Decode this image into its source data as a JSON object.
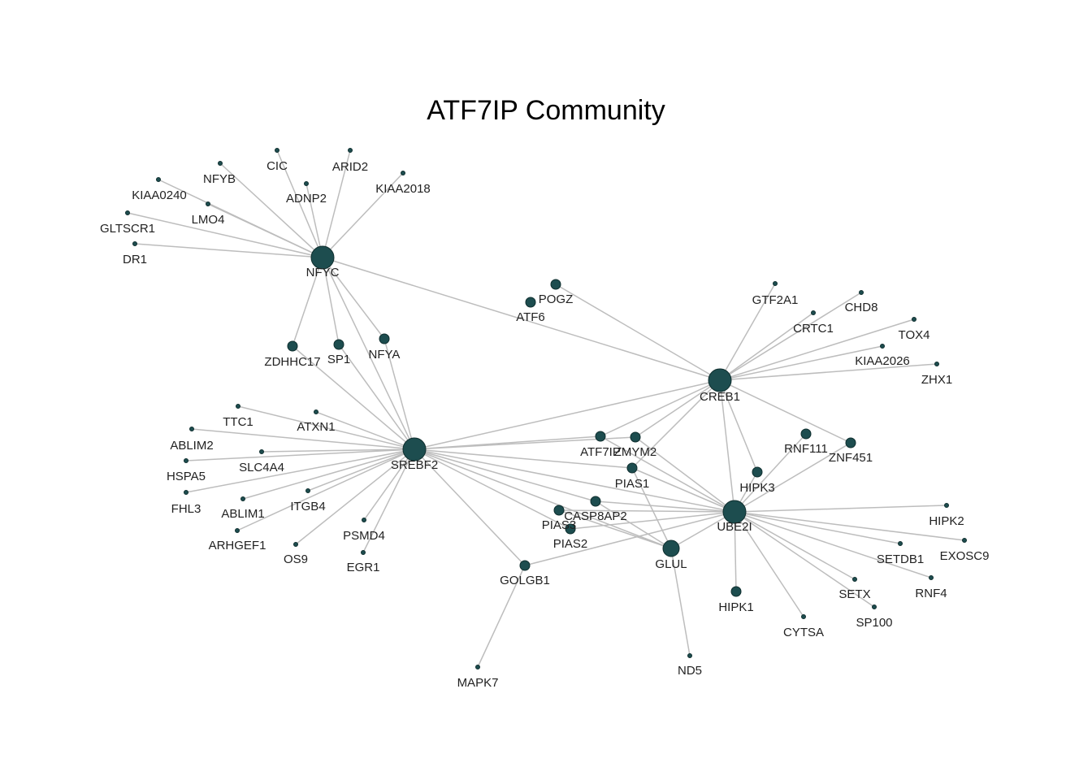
{
  "title": "ATF7IP Community",
  "colors": {
    "node": "#1d4d4f",
    "edge": "#bdbdbd",
    "background": "#ffffff"
  },
  "nodes": [
    {
      "id": "NFYC",
      "size": "hub"
    },
    {
      "id": "SREBF2",
      "size": "hub"
    },
    {
      "id": "CREB1",
      "size": "hub"
    },
    {
      "id": "UBE2I",
      "size": "hub"
    },
    {
      "id": "GLUL",
      "size": "medium"
    },
    {
      "id": "POGZ",
      "size": "small"
    },
    {
      "id": "ATF6",
      "size": "small"
    },
    {
      "id": "ZDHHC17",
      "size": "small"
    },
    {
      "id": "SP1",
      "size": "small"
    },
    {
      "id": "NFYA",
      "size": "small"
    },
    {
      "id": "ATF7IP",
      "size": "small"
    },
    {
      "id": "ZMYM2",
      "size": "small"
    },
    {
      "id": "PIAS1",
      "size": "small"
    },
    {
      "id": "CASP8AP2",
      "size": "small"
    },
    {
      "id": "PIAS3",
      "size": "small"
    },
    {
      "id": "PIAS2",
      "size": "small"
    },
    {
      "id": "GOLGB1",
      "size": "small"
    },
    {
      "id": "RNF111",
      "size": "small"
    },
    {
      "id": "ZNF451",
      "size": "small"
    },
    {
      "id": "HIPK3",
      "size": "small"
    },
    {
      "id": "HIPK1",
      "size": "small"
    },
    {
      "id": "NFYB",
      "size": "tiny"
    },
    {
      "id": "CIC",
      "size": "tiny"
    },
    {
      "id": "ARID2",
      "size": "tiny"
    },
    {
      "id": "KIAA2018",
      "size": "tiny"
    },
    {
      "id": "ADNP2",
      "size": "tiny"
    },
    {
      "id": "KIAA0240",
      "size": "tiny"
    },
    {
      "id": "LMO4",
      "size": "tiny"
    },
    {
      "id": "GLTSCR1",
      "size": "tiny"
    },
    {
      "id": "DR1",
      "size": "tiny"
    },
    {
      "id": "GTF2A1",
      "size": "tiny"
    },
    {
      "id": "CHD8",
      "size": "tiny"
    },
    {
      "id": "CRTC1",
      "size": "tiny"
    },
    {
      "id": "TOX4",
      "size": "tiny"
    },
    {
      "id": "KIAA2026",
      "size": "tiny"
    },
    {
      "id": "ZHX1",
      "size": "tiny"
    },
    {
      "id": "TTC1",
      "size": "tiny"
    },
    {
      "id": "ATXN1",
      "size": "tiny"
    },
    {
      "id": "ABLIM2",
      "size": "tiny"
    },
    {
      "id": "SLC4A4",
      "size": "tiny"
    },
    {
      "id": "HSPA5",
      "size": "tiny"
    },
    {
      "id": "FHL3",
      "size": "tiny"
    },
    {
      "id": "ABLIM1",
      "size": "tiny"
    },
    {
      "id": "ITGB4",
      "size": "tiny"
    },
    {
      "id": "ARHGEF1",
      "size": "tiny"
    },
    {
      "id": "PSMD4",
      "size": "tiny"
    },
    {
      "id": "OS9",
      "size": "tiny"
    },
    {
      "id": "EGR1",
      "size": "tiny"
    },
    {
      "id": "MAPK7",
      "size": "tiny"
    },
    {
      "id": "ND5",
      "size": "tiny"
    },
    {
      "id": "HIPK2",
      "size": "tiny"
    },
    {
      "id": "SETDB1",
      "size": "tiny"
    },
    {
      "id": "EXOSC9",
      "size": "tiny"
    },
    {
      "id": "RNF4",
      "size": "tiny"
    },
    {
      "id": "SETX",
      "size": "tiny"
    },
    {
      "id": "SP100",
      "size": "tiny"
    },
    {
      "id": "CYTSA",
      "size": "tiny"
    }
  ],
  "edges": [
    [
      "NFYC",
      "NFYB"
    ],
    [
      "NFYC",
      "CIC"
    ],
    [
      "NFYC",
      "ARID2"
    ],
    [
      "NFYC",
      "KIAA2018"
    ],
    [
      "NFYC",
      "ADNP2"
    ],
    [
      "NFYC",
      "KIAA0240"
    ],
    [
      "NFYC",
      "LMO4"
    ],
    [
      "NFYC",
      "GLTSCR1"
    ],
    [
      "NFYC",
      "DR1"
    ],
    [
      "NFYC",
      "ZDHHC17"
    ],
    [
      "NFYC",
      "SP1"
    ],
    [
      "NFYC",
      "NFYA"
    ],
    [
      "NFYC",
      "SREBF2"
    ],
    [
      "NFYC",
      "CREB1"
    ],
    [
      "SREBF2",
      "ZDHHC17"
    ],
    [
      "SREBF2",
      "SP1"
    ],
    [
      "SREBF2",
      "NFYA"
    ],
    [
      "SREBF2",
      "TTC1"
    ],
    [
      "SREBF2",
      "ATXN1"
    ],
    [
      "SREBF2",
      "ABLIM2"
    ],
    [
      "SREBF2",
      "SLC4A4"
    ],
    [
      "SREBF2",
      "HSPA5"
    ],
    [
      "SREBF2",
      "FHL3"
    ],
    [
      "SREBF2",
      "ABLIM1"
    ],
    [
      "SREBF2",
      "ITGB4"
    ],
    [
      "SREBF2",
      "ARHGEF1"
    ],
    [
      "SREBF2",
      "PSMD4"
    ],
    [
      "SREBF2",
      "OS9"
    ],
    [
      "SREBF2",
      "EGR1"
    ],
    [
      "SREBF2",
      "GOLGB1"
    ],
    [
      "SREBF2",
      "CREB1"
    ],
    [
      "SREBF2",
      "ATF7IP"
    ],
    [
      "SREBF2",
      "ZMYM2"
    ],
    [
      "SREBF2",
      "PIAS1"
    ],
    [
      "SREBF2",
      "CASP8AP2"
    ],
    [
      "SREBF2",
      "UBE2I"
    ],
    [
      "SREBF2",
      "GLUL"
    ],
    [
      "SREBF2",
      "PIAS2"
    ],
    [
      "CREB1",
      "POGZ"
    ],
    [
      "CREB1",
      "GTF2A1"
    ],
    [
      "CREB1",
      "CHD8"
    ],
    [
      "CREB1",
      "CRTC1"
    ],
    [
      "CREB1",
      "TOX4"
    ],
    [
      "CREB1",
      "KIAA2026"
    ],
    [
      "CREB1",
      "ZHX1"
    ],
    [
      "CREB1",
      "ATF7IP"
    ],
    [
      "CREB1",
      "ZMYM2"
    ],
    [
      "CREB1",
      "HIPK3"
    ],
    [
      "CREB1",
      "UBE2I"
    ],
    [
      "CREB1",
      "ZNF451"
    ],
    [
      "CREB1",
      "PIAS1"
    ],
    [
      "UBE2I",
      "ATF7IP"
    ],
    [
      "UBE2I",
      "ZMYM2"
    ],
    [
      "UBE2I",
      "PIAS1"
    ],
    [
      "UBE2I",
      "PIAS3"
    ],
    [
      "UBE2I",
      "PIAS2"
    ],
    [
      "UBE2I",
      "CASP8AP2"
    ],
    [
      "UBE2I",
      "GLUL"
    ],
    [
      "UBE2I",
      "HIPK3"
    ],
    [
      "UBE2I",
      "RNF111"
    ],
    [
      "UBE2I",
      "ZNF451"
    ],
    [
      "UBE2I",
      "HIPK1"
    ],
    [
      "UBE2I",
      "HIPK2"
    ],
    [
      "UBE2I",
      "SETDB1"
    ],
    [
      "UBE2I",
      "EXOSC9"
    ],
    [
      "UBE2I",
      "RNF4"
    ],
    [
      "UBE2I",
      "SETX"
    ],
    [
      "UBE2I",
      "SP100"
    ],
    [
      "UBE2I",
      "CYTSA"
    ],
    [
      "UBE2I",
      "GOLGB1"
    ],
    [
      "GLUL",
      "PIAS1"
    ],
    [
      "GLUL",
      "PIAS3"
    ],
    [
      "GLUL",
      "ND5"
    ],
    [
      "GLUL",
      "CASP8AP2"
    ],
    [
      "GOLGB1",
      "MAPK7"
    ]
  ]
}
